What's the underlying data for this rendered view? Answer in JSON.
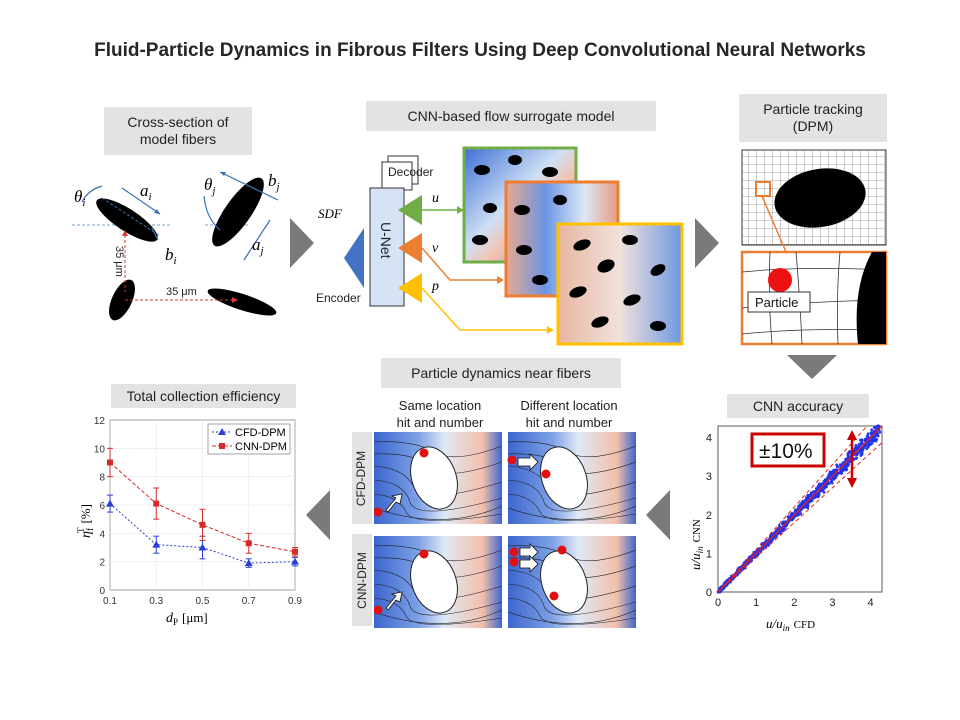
{
  "title": "Fluid-Particle Dynamics in Fibrous Filters Using Deep Convolutional Neural Networks",
  "panels": {
    "cross_section": {
      "label_line1": "Cross-section of",
      "label_line2": "model fibers",
      "theta_i": "θ",
      "theta_i_sub": "i",
      "a_i": "a",
      "a_i_sub": "i",
      "b_i": "b",
      "b_i_sub": "i",
      "theta_j": "θ",
      "theta_j_sub": "j",
      "a_j": "a",
      "a_j_sub": "j",
      "b_j": "b",
      "b_j_sub": "j",
      "dist_vertical": "35 μm",
      "dist_horizontal": "35 μm"
    },
    "cnn_model": {
      "label": "CNN-based flow surrogate model",
      "decoder": "Decoder",
      "encoder": "Encoder",
      "sdf": "SDF",
      "unet": "U-Net",
      "u": "u",
      "v": "v",
      "p": "p"
    },
    "particle_tracking": {
      "label_line1": "Particle tracking",
      "label_line2": "(DPM)",
      "particle": "Particle"
    },
    "cnn_accuracy": {
      "label": "CNN accuracy",
      "band": "±10%",
      "xlabel_var": "u/u",
      "xlabel_sub": "in",
      "xlabel_tag": "CFD",
      "ylabel_var": "u/u",
      "ylabel_sub": "in",
      "ylabel_tag": "CNN"
    },
    "particle_dynamics": {
      "label": "Particle dynamics near fibers",
      "col1_line1": "Same location",
      "col1_line2": "hit and number",
      "col2_line1": "Different location",
      "col2_line2": "hit and number",
      "row1": "CFD-DPM",
      "row2": "CNN-DPM"
    },
    "collection": {
      "label": "Total collection efficiency",
      "xlabel_var": "d",
      "xlabel_sub": "P",
      "xlabel_unit": "[μm]",
      "ylabel_var": "η",
      "ylabel_sub": "f",
      "ylabel_sup": "T",
      "ylabel_unit": "[%]"
    }
  },
  "chart_data": [
    {
      "type": "line",
      "title": "Total collection efficiency",
      "x": [
        0.1,
        0.3,
        0.5,
        0.7,
        0.9
      ],
      "xticks": [
        "0.1",
        "0.3",
        "0.5",
        "0.7",
        "0.9"
      ],
      "yticks": [
        "0",
        "2",
        "4",
        "6",
        "8",
        "10",
        "12"
      ],
      "xlim": [
        0.1,
        0.9
      ],
      "ylim": [
        0,
        12
      ],
      "legend": "top-right",
      "series": [
        {
          "name": "CFD-DPM",
          "values": [
            6.1,
            3.2,
            3.0,
            1.9,
            2.0
          ],
          "err": [
            0.6,
            0.6,
            0.8,
            0.3,
            0.3
          ],
          "color": "#2b3fd6",
          "marker": "triangle"
        },
        {
          "name": "CNN-DPM",
          "values": [
            9.0,
            6.1,
            4.6,
            3.3,
            2.7
          ],
          "err": [
            1.0,
            1.1,
            1.1,
            0.7,
            0.3
          ],
          "color": "#d62b2b",
          "marker": "square"
        }
      ]
    },
    {
      "type": "scatter",
      "title": "CNN accuracy",
      "xticks": [
        "0",
        "1",
        "2",
        "3",
        "4"
      ],
      "yticks": [
        "0",
        "1",
        "2",
        "3",
        "4"
      ],
      "xlim": [
        0,
        4.3
      ],
      "ylim": [
        0,
        4.3
      ],
      "band_percent": 10,
      "points_extent": [
        0,
        4.25
      ],
      "color": "#2233ee",
      "line_color": "#e02020"
    }
  ]
}
